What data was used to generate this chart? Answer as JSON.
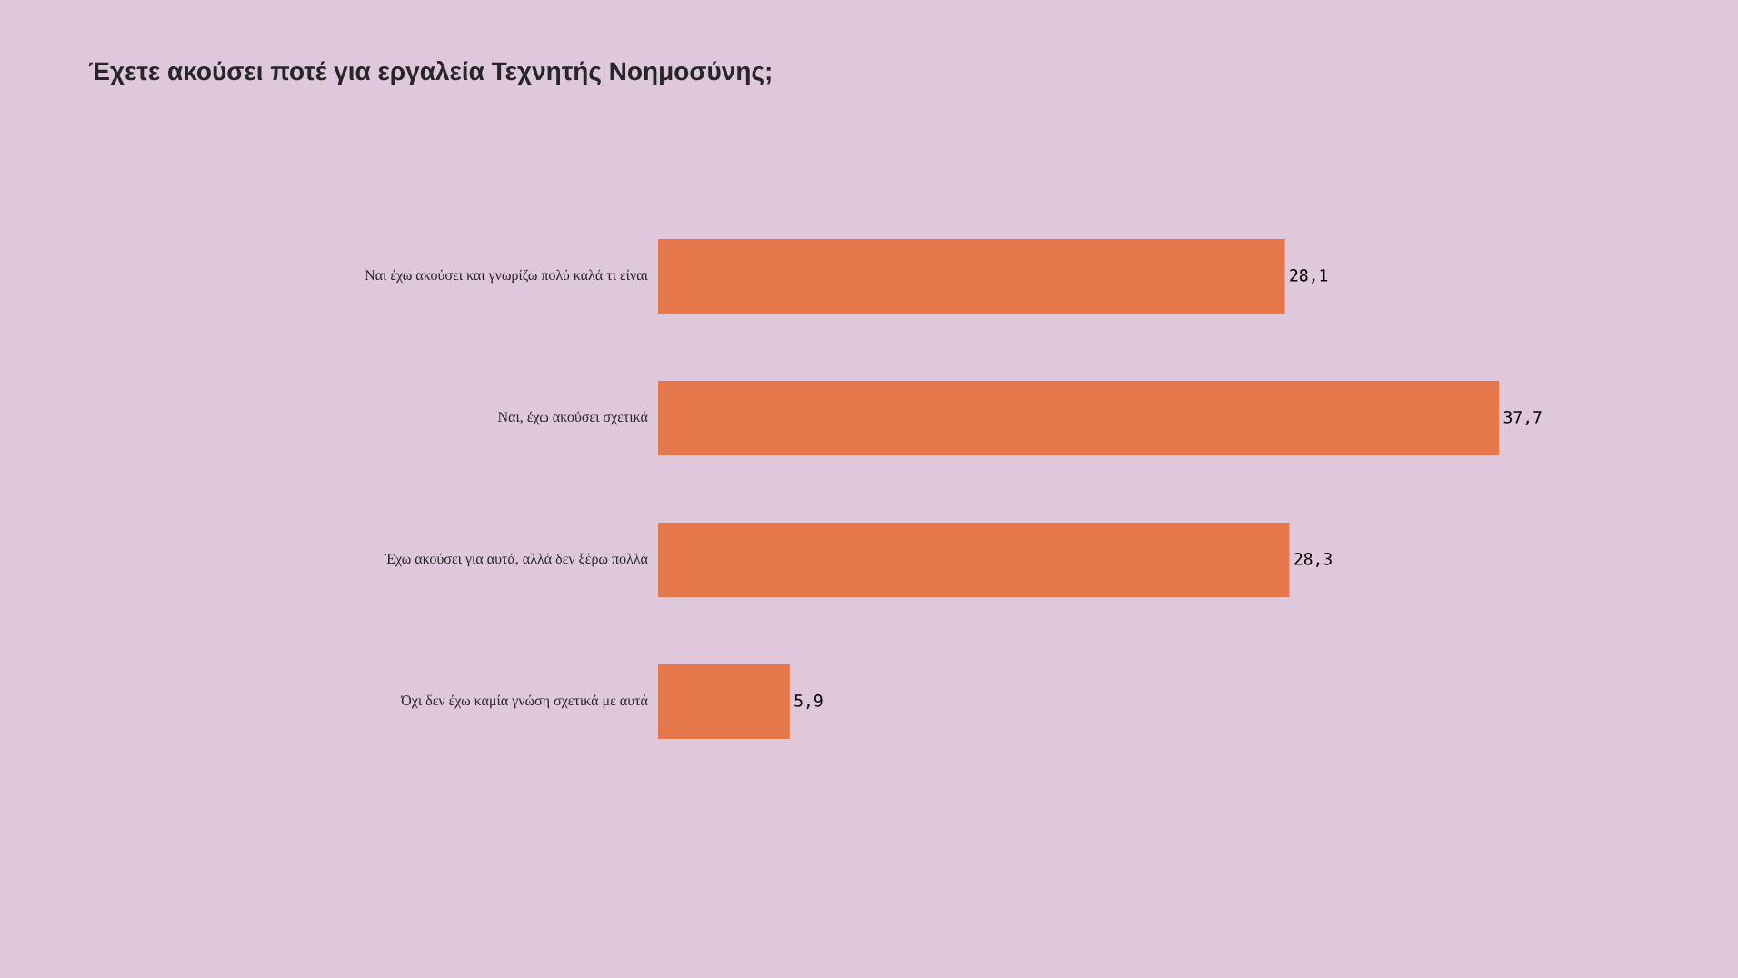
{
  "chart_data": {
    "type": "bar",
    "orientation": "horizontal",
    "title": "Έχετε ακούσει ποτέ για εργαλεία Τεχνητής Νοημοσύνης;",
    "categories": [
      "Ναι έχω ακούσει και γνωρίζω πολύ καλά τι είναι",
      "Ναι, έχω ακούσει σχετικά",
      "Έχω ακούσει για αυτά, αλλά δεν ξέρω πολλά",
      "Όχι δεν έχω καμία γνώση σχετικά με αυτά"
    ],
    "values": [
      28.1,
      37.7,
      28.3,
      5.9
    ],
    "value_labels": [
      "28,1",
      "37,7",
      "28,3",
      "5,9"
    ],
    "color": "#e5774b",
    "tick_labels": "y"
  }
}
